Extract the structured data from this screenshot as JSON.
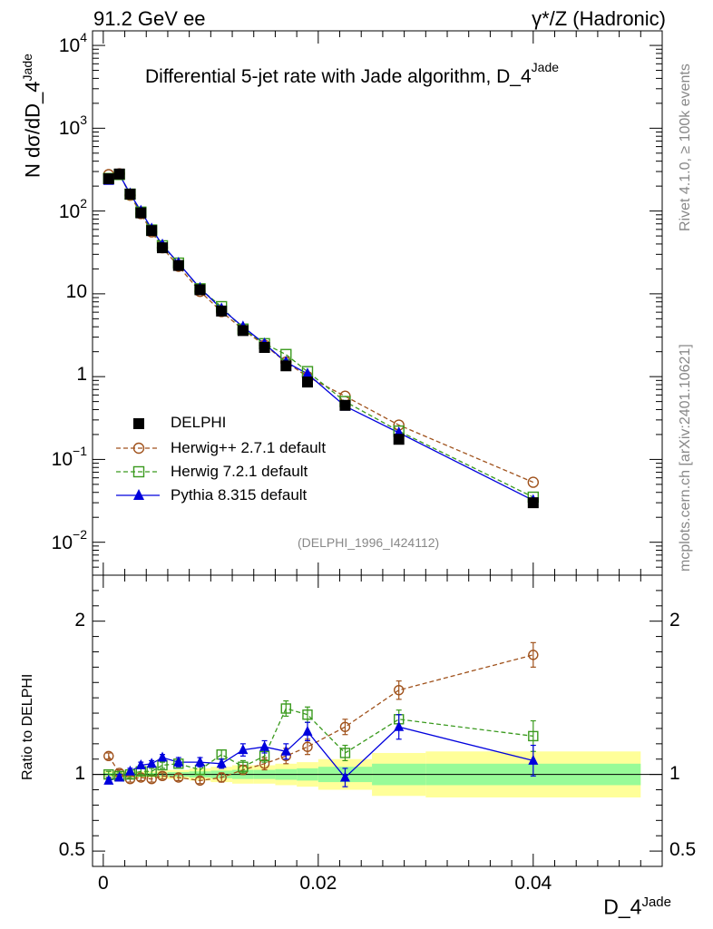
{
  "header": {
    "energy_label": "91.2 GeV ee",
    "process_label": "γ*/Z (Hadronic)",
    "plot_title_main": "Differential 5-jet rate with Jade algorithm, D_4",
    "plot_title_sup": "Jade"
  },
  "side_labels": {
    "rivet": "Rivet 4.1.0, ≥ 100k events",
    "mcplots": "mcplots.cern.ch [arXiv:2401.10621]"
  },
  "watermark": "(DELPHI_1996_I424112)",
  "colors": {
    "data": "#000000",
    "herwigpp": "#a0521c",
    "herwig7": "#3a9a1e",
    "pythia": "#0000dd",
    "band_inner": "#98fb98",
    "band_outer": "#ffff99"
  },
  "chart_data": [
    {
      "type": "scatter",
      "panel": "main",
      "ylabel": "N  dσ/dD_4",
      "ylabel_sup": "Jade",
      "yscale": "log",
      "ylim": [
        0.004,
        15000
      ],
      "xlim": [
        -0.001,
        0.052
      ],
      "y_tick_labels": [
        {
          "base": "10",
          "exp": "−2",
          "value": 0.01
        },
        {
          "base": "10",
          "exp": "−1",
          "value": 0.1
        },
        {
          "base": "1",
          "exp": "",
          "value": 1
        },
        {
          "base": "10",
          "exp": "",
          "value": 10
        },
        {
          "base": "10",
          "exp": "2",
          "value": 100
        },
        {
          "base": "10",
          "exp": "3",
          "value": 1000
        },
        {
          "base": "10",
          "exp": "4",
          "value": 10000
        }
      ],
      "x": [
        0.0005,
        0.0015,
        0.0025,
        0.0035,
        0.0045,
        0.0055,
        0.007,
        0.009,
        0.011,
        0.013,
        0.015,
        0.017,
        0.019,
        0.0225,
        0.0275,
        0.04
      ],
      "series": [
        {
          "name": "DELPHI",
          "key": "data",
          "marker": "square-filled",
          "values": [
            245,
            280,
            160,
            95,
            58,
            36,
            22,
            11.2,
            6.2,
            3.6,
            2.25,
            1.35,
            0.86,
            0.45,
            0.175,
            0.03
          ]
        },
        {
          "name": "Herwig++ 2.7.1 default",
          "key": "herwigpp",
          "marker": "circle-open",
          "dash": true,
          "values": [
            275,
            282,
            155,
            93,
            56,
            36,
            21.5,
            10.7,
            6.1,
            3.7,
            2.4,
            1.5,
            1.0,
            0.58,
            0.26,
            0.053
          ]
        },
        {
          "name": "Herwig 7.2.1 default",
          "key": "herwig7",
          "marker": "square-open",
          "dash": true,
          "values": [
            247,
            276,
            160,
            97,
            59,
            38,
            23.5,
            11.5,
            7.0,
            3.75,
            2.5,
            1.85,
            1.15,
            0.5,
            0.22,
            0.035
          ]
        },
        {
          "name": "Pythia 8.315 default",
          "key": "pythia",
          "marker": "triangle-filled",
          "dash": false,
          "values": [
            235,
            275,
            162,
            100,
            61,
            39,
            23.5,
            11.7,
            6.6,
            4.0,
            2.5,
            1.5,
            1.08,
            0.44,
            0.21,
            0.032
          ]
        }
      ]
    },
    {
      "type": "line",
      "panel": "ratio",
      "ylabel": "Ratio to DELPHI",
      "ylim": [
        0.4,
        2.3
      ],
      "y_tick_labels": [
        {
          "text": "0.5",
          "value": 0.5
        },
        {
          "text": "1",
          "value": 1
        },
        {
          "text": "2",
          "value": 2
        }
      ],
      "xlabel": "D_4",
      "xlabel_sup": "Jade",
      "x_tick_labels": [
        {
          "text": "0",
          "value": 0
        },
        {
          "text": "0.02",
          "value": 0.02
        },
        {
          "text": "0.04",
          "value": 0.04
        }
      ],
      "x": [
        0.0005,
        0.0015,
        0.0025,
        0.0035,
        0.0045,
        0.0055,
        0.007,
        0.009,
        0.011,
        0.013,
        0.015,
        0.017,
        0.019,
        0.0225,
        0.0275,
        0.04
      ],
      "bin_edges": [
        0,
        0.001,
        0.002,
        0.003,
        0.004,
        0.005,
        0.006,
        0.008,
        0.01,
        0.012,
        0.014,
        0.016,
        0.018,
        0.02,
        0.025,
        0.03,
        0.05
      ],
      "band_inner": [
        0.01,
        0.01,
        0.01,
        0.01,
        0.01,
        0.012,
        0.015,
        0.02,
        0.025,
        0.03,
        0.03,
        0.035,
        0.04,
        0.05,
        0.07,
        0.07
      ],
      "band_outer": [
        0.02,
        0.02,
        0.02,
        0.02,
        0.02,
        0.025,
        0.03,
        0.04,
        0.05,
        0.06,
        0.06,
        0.07,
        0.08,
        0.1,
        0.14,
        0.15
      ],
      "series": [
        {
          "name": "Herwig++ 2.7.1 default",
          "key": "herwigpp",
          "marker": "circle-open",
          "dash": true,
          "values": [
            1.12,
            1.01,
            0.97,
            0.98,
            0.97,
            0.99,
            0.98,
            0.96,
            0.98,
            1.03,
            1.07,
            1.12,
            1.18,
            1.31,
            1.55,
            1.78
          ],
          "errors": [
            0.02,
            0.02,
            0.02,
            0.02,
            0.02,
            0.02,
            0.02,
            0.02,
            0.03,
            0.03,
            0.04,
            0.05,
            0.05,
            0.05,
            0.06,
            0.08
          ]
        },
        {
          "name": "Herwig 7.2.1 default",
          "key": "herwig7",
          "marker": "square-open",
          "dash": true,
          "values": [
            1.0,
            0.99,
            1.0,
            1.02,
            1.02,
            1.06,
            1.07,
            1.03,
            1.13,
            1.05,
            1.12,
            1.43,
            1.39,
            1.14,
            1.36,
            1.25
          ],
          "errors": [
            0.02,
            0.02,
            0.02,
            0.02,
            0.02,
            0.02,
            0.02,
            0.03,
            0.03,
            0.04,
            0.04,
            0.05,
            0.05,
            0.05,
            0.06,
            0.1
          ]
        },
        {
          "name": "Pythia 8.315 default",
          "key": "pythia",
          "marker": "triangle-filled",
          "dash": false,
          "values": [
            0.96,
            0.98,
            1.02,
            1.06,
            1.07,
            1.11,
            1.08,
            1.08,
            1.07,
            1.16,
            1.18,
            1.15,
            1.28,
            0.98,
            1.31,
            1.09
          ],
          "errors": [
            0.02,
            0.02,
            0.02,
            0.02,
            0.02,
            0.02,
            0.03,
            0.03,
            0.03,
            0.04,
            0.04,
            0.05,
            0.06,
            0.06,
            0.08,
            0.1
          ]
        }
      ]
    }
  ]
}
